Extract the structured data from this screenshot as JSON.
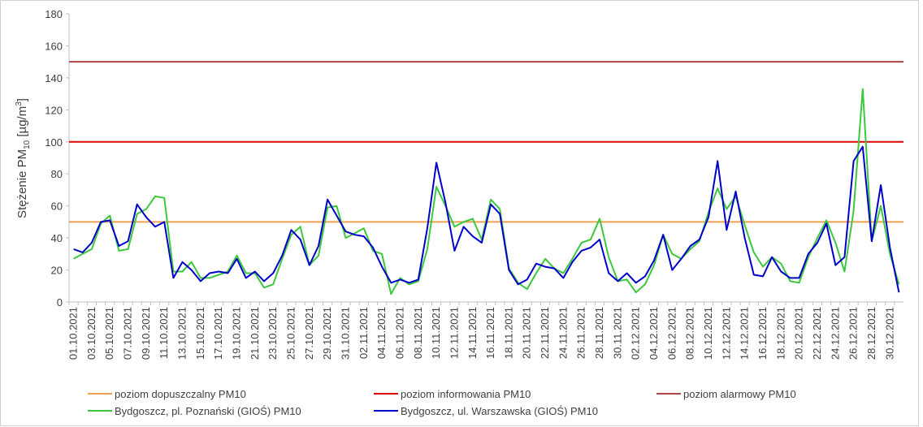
{
  "chart_data": {
    "type": "line",
    "y_label": {
      "parts": [
        "Stężenie PM",
        "10",
        " [µg/m",
        "3",
        "]"
      ]
    },
    "categories": [
      "01.10.2021",
      null,
      "03.10.2021",
      null,
      "05.10.2021",
      null,
      "07.10.2021",
      null,
      "09.10.2021",
      null,
      "11.10.2021",
      null,
      "13.10.2021",
      null,
      "15.10.2021",
      null,
      "17.10.2021",
      null,
      "19.10.2021",
      null,
      "21.10.2021",
      null,
      "23.10.2021",
      null,
      "25.10.2021",
      null,
      "27.10.2021",
      null,
      "29.10.2021",
      null,
      "31.10.2021",
      null,
      "02.11.2021",
      null,
      "04.11.2021",
      null,
      "06.11.2021",
      null,
      "08.11.2021",
      null,
      "10.11.2021",
      null,
      "12.11.2021",
      null,
      "14.11.2021",
      null,
      "16.11.2021",
      null,
      "18.11.2021",
      null,
      "20.11.2021",
      null,
      "22.11.2021",
      null,
      "24.11.2021",
      null,
      "26.11.2021",
      null,
      "28.11.2021",
      null,
      "30.11.2021",
      null,
      "02.12.2021",
      null,
      "04.12.2021",
      null,
      "06.12.2021",
      null,
      "08.12.2021",
      null,
      "10.12.2021",
      null,
      "12.12.2021",
      null,
      "14.12.2021",
      null,
      "16.12.2021",
      null,
      "18.12.2021",
      null,
      "20.12.2021",
      null,
      "22.12.2021",
      null,
      "24.12.2021",
      null,
      "26.12.2021",
      null,
      "28.12.2021",
      null,
      "30.12.2021",
      null
    ],
    "thresholds": [
      {
        "name": "poziom dopuszczalny PM10",
        "value": 50,
        "color": "#f0a050"
      },
      {
        "name": "poziom informowania PM10",
        "value": 100,
        "color": "#e00000"
      },
      {
        "name": "poziom alarmowy PM10",
        "value": 150,
        "color": "#b04545"
      }
    ],
    "series": [
      {
        "name": "Bydgoszcz, pl. Poznański (GIOŚ) PM10",
        "color": "#3cc83c",
        "values": [
          27,
          30,
          33,
          49,
          54,
          32,
          33,
          55,
          58,
          66,
          65,
          19,
          19,
          25,
          15,
          15,
          17,
          19,
          29,
          18,
          18,
          9,
          11,
          27,
          42,
          47,
          23,
          29,
          59,
          60,
          40,
          43,
          46,
          32,
          30,
          5,
          15,
          11,
          13,
          33,
          72,
          60,
          47,
          50,
          52,
          39,
          64,
          58,
          21,
          12,
          8,
          18,
          27,
          21,
          18,
          27,
          37,
          39,
          52,
          28,
          13,
          14,
          6,
          11,
          23,
          42,
          30,
          27,
          33,
          38,
          56,
          71,
          58,
          66,
          48,
          31,
          22,
          28,
          24,
          13,
          12,
          28,
          40,
          51,
          37,
          19,
          57,
          133,
          38,
          60,
          30,
          11
        ]
      },
      {
        "name": "Bydgoszcz, ul. Warszawska (GIOŚ) PM10",
        "color": "#0000cc",
        "values": [
          33,
          31,
          37,
          50,
          51,
          35,
          38,
          61,
          53,
          47,
          50,
          15,
          25,
          20,
          13,
          18,
          19,
          18,
          27,
          15,
          19,
          13,
          18,
          29,
          45,
          39,
          23,
          35,
          64,
          54,
          44,
          42,
          41,
          34,
          22,
          12,
          14,
          12,
          14,
          46,
          87,
          62,
          32,
          47,
          41,
          37,
          61,
          55,
          20,
          11,
          14,
          24,
          22,
          21,
          15,
          25,
          32,
          34,
          39,
          18,
          13,
          18,
          12,
          16,
          26,
          42,
          20,
          27,
          35,
          39,
          53,
          88,
          45,
          69,
          40,
          17,
          16,
          28,
          19,
          15,
          15,
          30,
          37,
          49,
          23,
          28,
          88,
          97,
          38,
          73,
          34,
          6
        ]
      }
    ],
    "ylim": [
      0,
      180
    ],
    "yticks": [
      0,
      20,
      40,
      60,
      80,
      100,
      120,
      140,
      160,
      180
    ],
    "grid": false
  }
}
